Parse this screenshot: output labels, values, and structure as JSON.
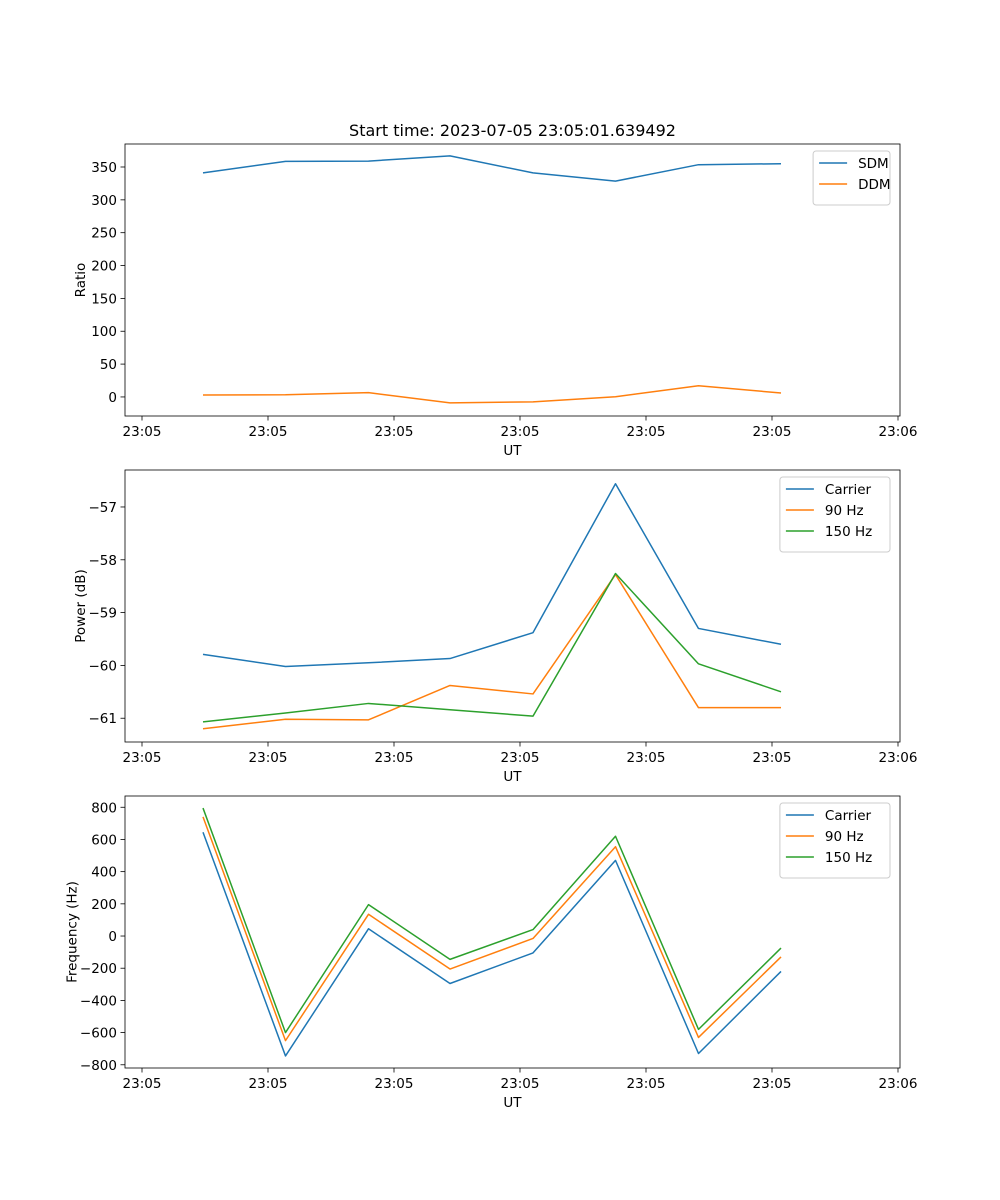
{
  "figure": {
    "title": "Start time: 2023-07-05 23:05:01.639492"
  },
  "chart_data": [
    {
      "type": "line",
      "title": "Start time: 2023-07-05 23:05:01.639492",
      "xlabel": "UT",
      "ylabel": "Ratio",
      "x_ticks": [
        "23:05",
        "23:05",
        "23:05",
        "23:05",
        "23:05",
        "23:05",
        "23:06"
      ],
      "y_ticks": [
        0,
        50,
        100,
        150,
        200,
        250,
        300,
        350
      ],
      "ylim": [
        -29,
        385
      ],
      "legend_position": "top-right",
      "series": [
        {
          "name": "SDM",
          "color": "#1f77b4",
          "values": [
            341,
            358.5,
            359,
            367,
            341,
            328.5,
            353.5,
            355
          ]
        },
        {
          "name": "DDM",
          "color": "#ff7f0e",
          "values": [
            3,
            3.3,
            6.5,
            -9,
            -7.5,
            0.3,
            17,
            6
          ]
        }
      ]
    },
    {
      "type": "line",
      "title": "",
      "xlabel": "UT",
      "ylabel": "Power (dB)",
      "x_ticks": [
        "23:05",
        "23:05",
        "23:05",
        "23:05",
        "23:05",
        "23:05",
        "23:06"
      ],
      "y_ticks": [
        -57,
        -58,
        -59,
        -60,
        -61
      ],
      "ylim": [
        -61.45,
        -56.3
      ],
      "legend_position": "top-right",
      "series": [
        {
          "name": "Carrier",
          "color": "#1f77b4",
          "values": [
            -59.79,
            -60.02,
            -59.95,
            -59.87,
            -59.38,
            -56.56,
            -59.3,
            -59.6
          ]
        },
        {
          "name": "90 Hz",
          "color": "#ff7f0e",
          "values": [
            -61.2,
            -61.02,
            -61.03,
            -60.38,
            -60.54,
            -58.28,
            -60.8,
            -60.8
          ]
        },
        {
          "name": "150 Hz",
          "color": "#2ca02c",
          "values": [
            -61.07,
            -60.9,
            -60.72,
            -60.84,
            -60.96,
            -58.26,
            -59.97,
            -60.5
          ]
        }
      ]
    },
    {
      "type": "line",
      "title": "",
      "xlabel": "UT",
      "ylabel": "Frequency (Hz)",
      "x_ticks": [
        "23:05",
        "23:05",
        "23:05",
        "23:05",
        "23:05",
        "23:05",
        "23:06"
      ],
      "y_ticks": [
        -800,
        -600,
        -400,
        -200,
        0,
        200,
        400,
        600,
        800
      ],
      "ylim": [
        -820,
        870
      ],
      "legend_position": "top-right",
      "series": [
        {
          "name": "Carrier",
          "color": "#1f77b4",
          "values": [
            645,
            -745,
            45,
            -295,
            -105,
            470,
            -730,
            -220
          ]
        },
        {
          "name": "90 Hz",
          "color": "#ff7f0e",
          "values": [
            740,
            -650,
            135,
            -205,
            -15,
            555,
            -630,
            -130
          ]
        },
        {
          "name": "150 Hz",
          "color": "#2ca02c",
          "values": [
            795,
            -600,
            195,
            -145,
            40,
            620,
            -580,
            -75
          ]
        }
      ]
    }
  ]
}
